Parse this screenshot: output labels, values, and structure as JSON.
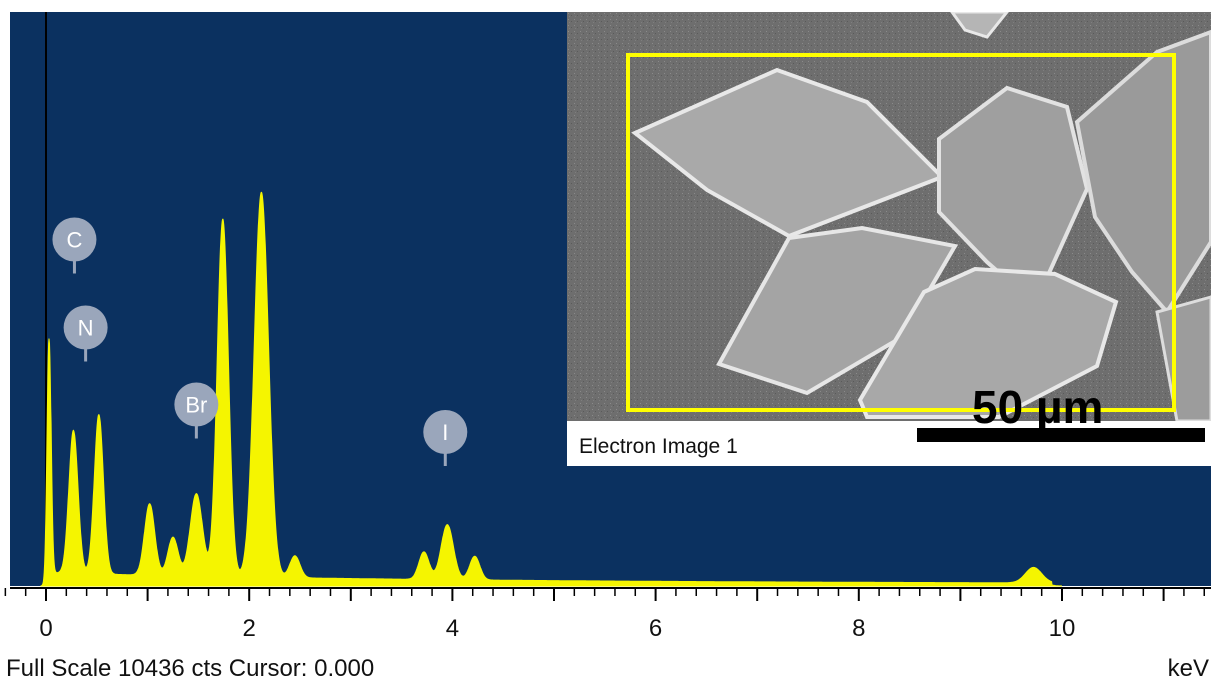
{
  "chart_data": {
    "type": "area",
    "xlabel": "keV",
    "xlim": [
      -0.8,
      11.5
    ],
    "ylim": [
      0,
      10436
    ],
    "x_ticks": [
      "0",
      "2",
      "4",
      "6",
      "8",
      "10"
    ],
    "tick_values": [
      0,
      2,
      4,
      6,
      8,
      10
    ],
    "peaks": [
      {
        "center": 0.03,
        "height": 4500,
        "width": 0.02
      },
      {
        "center": 0.27,
        "height": 2600,
        "width": 0.045
      },
      {
        "center": 0.52,
        "height": 2900,
        "width": 0.045
      },
      {
        "center": 1.02,
        "height": 1300,
        "width": 0.05
      },
      {
        "center": 1.25,
        "height": 700,
        "width": 0.05
      },
      {
        "center": 1.48,
        "height": 1500,
        "width": 0.06
      },
      {
        "center": 1.74,
        "height": 6500,
        "width": 0.055
      },
      {
        "center": 2.12,
        "height": 7000,
        "width": 0.07
      },
      {
        "center": 2.45,
        "height": 400,
        "width": 0.05
      },
      {
        "center": 3.72,
        "height": 500,
        "width": 0.05
      },
      {
        "center": 3.95,
        "height": 1000,
        "width": 0.06
      },
      {
        "center": 4.22,
        "height": 430,
        "width": 0.05
      },
      {
        "center": 9.72,
        "height": 280,
        "width": 0.08
      }
    ],
    "background": {
      "level": 200,
      "decay": 0.25
    },
    "element_markers": [
      {
        "label": "C",
        "kev": 0.28,
        "y_counts": 6300
      },
      {
        "label": "N",
        "kev": 0.39,
        "y_counts": 4700
      },
      {
        "label": "Br",
        "kev": 1.48,
        "y_counts": 3300
      },
      {
        "label": "I",
        "kev": 3.93,
        "y_counts": 2800
      }
    ],
    "colors": {
      "background": "#0b3160",
      "spectrum": "#f5f500",
      "marker": "#9aa6bb"
    }
  },
  "inset": {
    "caption": "Electron Image 1",
    "scalebar_label": "50 µm",
    "selection_color": "#ffff00"
  },
  "footer": {
    "status": "Full Scale 10436 cts Cursor: 0.000",
    "unit": "keV"
  }
}
